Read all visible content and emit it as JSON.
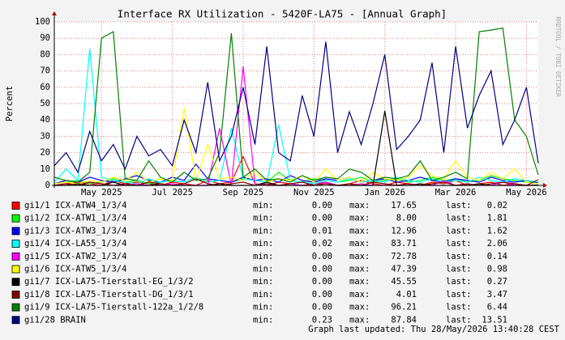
{
  "chart_data": {
    "type": "line",
    "title": "Interface RX Utilization - 5420F-LA75 - [Annual Graph]",
    "y_label": "Percent",
    "watermark": "RRDTOOL / TOBI OETIKER",
    "categories": [
      null,
      null,
      null,
      null,
      "May 2025",
      null,
      null,
      null,
      null,
      null,
      "Jul 2025",
      null,
      null,
      null,
      null,
      null,
      "Sep 2025",
      null,
      null,
      null,
      null,
      null,
      "Nov 2025",
      null,
      null,
      null,
      null,
      null,
      "Jan 2026",
      null,
      null,
      null,
      null,
      null,
      "Mar 2026",
      null,
      null,
      null,
      null,
      null,
      "May 2026",
      null
    ],
    "ylim": [
      0,
      100
    ],
    "yticks": [
      0,
      10,
      20,
      30,
      40,
      50,
      60,
      70,
      80,
      90,
      100
    ],
    "grid": true,
    "legend_labels": {
      "min": "min:",
      "max": "max:",
      "last": "last:"
    },
    "series": [
      {
        "name": "gi1/1 ICX-ATW4_1/3/4",
        "color": "#ff0000",
        "min": "0.00",
        "max": "17.65",
        "last": "0.02",
        "values": [
          0,
          1,
          2,
          1,
          0,
          3,
          1,
          2,
          1,
          0,
          2,
          1,
          0,
          3,
          1,
          2,
          17.65,
          1,
          0,
          2,
          1,
          0,
          1,
          2,
          0,
          1,
          3,
          1,
          0,
          2,
          1,
          0,
          2,
          1,
          3,
          0,
          1,
          2,
          0,
          1,
          0,
          0
        ]
      },
      {
        "name": "gi1/2 ICX-ATW1_1/3/4",
        "color": "#00ff00",
        "min": "0.00",
        "max": "8.00",
        "last": "1.81",
        "values": [
          1,
          2,
          3,
          1,
          2,
          4,
          2,
          3,
          1,
          2,
          3,
          2,
          5,
          2,
          3,
          2,
          4,
          3,
          2,
          8,
          3,
          2,
          4,
          3,
          2,
          3,
          5,
          2,
          3,
          4,
          2,
          3,
          5,
          3,
          4,
          2,
          3,
          6,
          4,
          3,
          2,
          1.81
        ]
      },
      {
        "name": "gi1/3 ICX-ATW3_1/3/4",
        "color": "#0000ff",
        "min": "0.01",
        "max": "12.96",
        "last": "1.62",
        "values": [
          1,
          3,
          2,
          5,
          3,
          2,
          4,
          6,
          3,
          2,
          5,
          3,
          12.96,
          4,
          3,
          2,
          5,
          3,
          4,
          2,
          6,
          3,
          2,
          4,
          3,
          5,
          2,
          3,
          4,
          2,
          3,
          5,
          3,
          2,
          4,
          3,
          2,
          5,
          3,
          2,
          3,
          1.62
        ]
      },
      {
        "name": "gi1/4 ICX-LA55_1/3/4",
        "color": "#00ffff",
        "min": "0.02",
        "max": "83.71",
        "last": "2.06",
        "values": [
          2,
          10,
          3,
          83.71,
          5,
          3,
          2,
          1,
          4,
          2,
          3,
          2,
          5,
          2,
          3,
          35,
          4,
          3,
          2,
          37,
          3,
          2,
          1,
          3,
          2,
          4,
          2,
          3,
          2,
          5,
          3,
          2,
          4,
          2,
          3,
          2,
          5,
          3,
          2,
          4,
          3,
          2.06
        ]
      },
      {
        "name": "gi1/5 ICX-ATW2_1/3/4",
        "color": "#ff00ff",
        "min": "0.00",
        "max": "72.78",
        "last": "0.14",
        "values": [
          0,
          1,
          0,
          2,
          1,
          0,
          0,
          1,
          0,
          0,
          1,
          0,
          0,
          0,
          35,
          0,
          72.78,
          1,
          0,
          0,
          1,
          0,
          0,
          2,
          0,
          0,
          1,
          0,
          0,
          0,
          1,
          0,
          0,
          3,
          0,
          1,
          0,
          0,
          2,
          0,
          0,
          0.14
        ]
      },
      {
        "name": "gi1/6 ICX-ATW5_1/3/4",
        "color": "#ffff00",
        "min": "0.00",
        "max": "47.39",
        "last": "0.98",
        "values": [
          1,
          2,
          1,
          3,
          2,
          5,
          3,
          8,
          2,
          4,
          3,
          47.39,
          3,
          25,
          4,
          5,
          3,
          8,
          2,
          4,
          3,
          6,
          2,
          10,
          3,
          5,
          2,
          8,
          4,
          3,
          5,
          12,
          6,
          4,
          15,
          5,
          3,
          8,
          4,
          10,
          2,
          0.98
        ]
      },
      {
        "name": "gi1/7 ICX-LA75-Tierstall-EG_1/3/2",
        "color": "#000000",
        "min": "0.00",
        "max": "45.55",
        "last": "0.27",
        "values": [
          0,
          0,
          1,
          0,
          0,
          2,
          0,
          0,
          0,
          1,
          0,
          0,
          0,
          0,
          1,
          0,
          0,
          0,
          2,
          0,
          0,
          0,
          0,
          1,
          0,
          0,
          0,
          0,
          45.55,
          0,
          0,
          1,
          0,
          0,
          0,
          0,
          1,
          0,
          0,
          0,
          0,
          0.27
        ]
      },
      {
        "name": "gi1/8 ICX-LA75-Tierstall-DG_1/3/1",
        "color": "#800000",
        "min": "0.00",
        "max": "4.01",
        "last": "3.47",
        "values": [
          0,
          1,
          0,
          2,
          1,
          0,
          1,
          0,
          2,
          1,
          0,
          1,
          4.01,
          1,
          0,
          1,
          2,
          0,
          1,
          0,
          1,
          2,
          0,
          1,
          0,
          1,
          0,
          2,
          1,
          0,
          1,
          0,
          1,
          2,
          0,
          1,
          0,
          1,
          2,
          1,
          0,
          3.47
        ]
      },
      {
        "name": "gi1/9 ICX-LA75-Tierstall-122a_1/2/8",
        "color": "#008000",
        "min": "0.00",
        "max": "96.21",
        "last": "6.44",
        "values": [
          5,
          3,
          2,
          8,
          90,
          94,
          4,
          3,
          15,
          5,
          2,
          8,
          3,
          4,
          20,
          93,
          5,
          10,
          3,
          4,
          2,
          6,
          3,
          5,
          4,
          10,
          8,
          3,
          5,
          4,
          6,
          15,
          3,
          5,
          8,
          4,
          94,
          95,
          96.21,
          40,
          30,
          6.44
        ]
      },
      {
        "name": "gi1/28 BRAIN",
        "color": "#000080",
        "min": "0.23",
        "max": "87.84",
        "last": "13.51",
        "values": [
          12,
          20,
          8,
          33,
          15,
          25,
          10,
          30,
          18,
          22,
          12,
          40,
          20,
          63,
          15,
          30,
          60,
          25,
          85,
          20,
          15,
          55,
          30,
          87.84,
          20,
          45,
          25,
          50,
          80,
          22,
          30,
          40,
          75,
          20,
          85,
          35,
          55,
          70,
          25,
          40,
          60,
          13.51
        ]
      }
    ],
    "footer": "Graph last updated: Thu 28/May/2026 13:40:28 CEST"
  }
}
